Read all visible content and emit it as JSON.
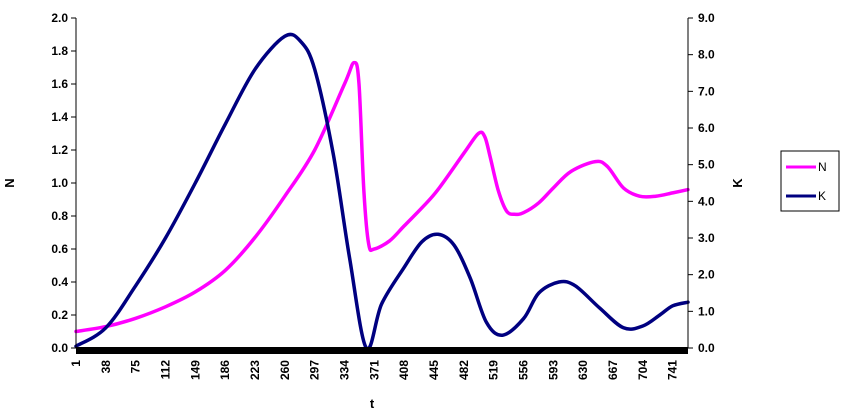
{
  "chart_data": {
    "type": "line",
    "xlabel": "t",
    "ylabel_left": "N",
    "ylabel_right": "K",
    "ylim_left": [
      0,
      2.0
    ],
    "ylim_right": [
      0,
      9.0
    ],
    "xlim": [
      1,
      760
    ],
    "grid": false,
    "legend_position": "right",
    "x_ticks": [
      "1",
      "38",
      "75",
      "112",
      "149",
      "186",
      "223",
      "260",
      "297",
      "334",
      "371",
      "408",
      "445",
      "482",
      "519",
      "556",
      "593",
      "630",
      "667",
      "704",
      "741"
    ],
    "x_tick_values": [
      1,
      38,
      75,
      112,
      149,
      186,
      223,
      260,
      297,
      334,
      371,
      408,
      445,
      482,
      519,
      556,
      593,
      630,
      667,
      704,
      741
    ],
    "y_left_ticks": [
      "0.0",
      "0.2",
      "0.4",
      "0.6",
      "0.8",
      "1.0",
      "1.2",
      "1.4",
      "1.6",
      "1.8",
      "2.0"
    ],
    "y_left_tick_values": [
      0,
      0.2,
      0.4,
      0.6,
      0.8,
      1.0,
      1.2,
      1.4,
      1.6,
      1.8,
      2.0
    ],
    "y_right_ticks": [
      "0.0",
      "1.0",
      "2.0",
      "3.0",
      "4.0",
      "5.0",
      "6.0",
      "7.0",
      "8.0",
      "9.0"
    ],
    "y_right_tick_values": [
      0,
      1,
      2,
      3,
      4,
      5,
      6,
      7,
      8,
      9
    ],
    "series": [
      {
        "name": "N",
        "axis": "left",
        "color": "#ff00ff",
        "x": [
          1,
          38,
          75,
          112,
          149,
          186,
          223,
          260,
          297,
          334,
          346,
          352,
          358,
          364,
          371,
          390,
          408,
          430,
          450,
          482,
          500,
          508,
          515,
          525,
          535,
          545,
          556,
          575,
          593,
          615,
          645,
          660,
          680,
          700,
          720,
          741,
          760
        ],
        "y": [
          0.1,
          0.13,
          0.18,
          0.25,
          0.34,
          0.47,
          0.67,
          0.92,
          1.2,
          1.6,
          1.73,
          1.6,
          0.95,
          0.63,
          0.6,
          0.65,
          0.74,
          0.85,
          0.96,
          1.18,
          1.3,
          1.28,
          1.15,
          0.95,
          0.83,
          0.81,
          0.82,
          0.88,
          0.97,
          1.07,
          1.13,
          1.1,
          0.97,
          0.92,
          0.92,
          0.94,
          0.96
        ]
      },
      {
        "name": "K",
        "axis": "right",
        "color": "#000080",
        "x": [
          1,
          38,
          75,
          112,
          149,
          186,
          223,
          260,
          280,
          297,
          320,
          340,
          361,
          380,
          408,
          430,
          450,
          470,
          490,
          510,
          530,
          556,
          575,
          600,
          620,
          650,
          680,
          704,
          725,
          741,
          760
        ],
        "y": [
          0.05,
          0.55,
          1.7,
          3.0,
          4.5,
          6.1,
          7.6,
          8.5,
          8.35,
          7.6,
          5.3,
          2.5,
          0.0,
          1.2,
          2.2,
          2.9,
          3.1,
          2.8,
          1.9,
          0.7,
          0.35,
          0.8,
          1.5,
          1.8,
          1.7,
          1.1,
          0.55,
          0.6,
          0.9,
          1.15,
          1.25
        ]
      }
    ]
  }
}
